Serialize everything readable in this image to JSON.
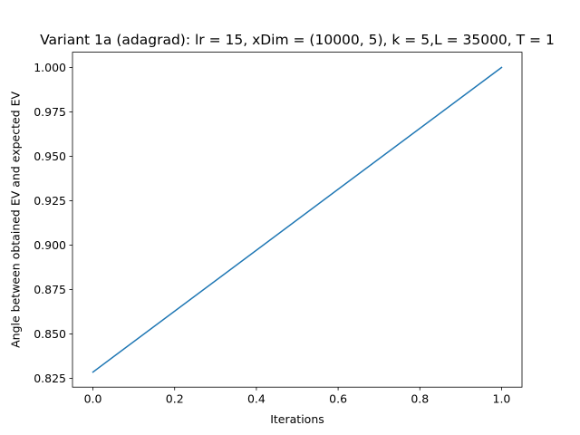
{
  "chart_data": {
    "type": "line",
    "title": "Variant 1a (adagrad): lr = 15, xDim = (10000, 5), k = 5,L = 35000, T = 1",
    "xlabel": "Iterations",
    "ylabel": "Angle between obtained EV and expected EV",
    "xlim": [
      -0.05,
      1.05
    ],
    "ylim": [
      0.82,
      1.0086
    ],
    "x_ticks": [
      0.0,
      0.2,
      0.4,
      0.6,
      0.8,
      1.0
    ],
    "x_tick_labels": [
      "0.0",
      "0.2",
      "0.4",
      "0.6",
      "0.8",
      "1.0"
    ],
    "y_ticks": [
      0.825,
      0.85,
      0.875,
      0.9,
      0.925,
      0.95,
      0.975,
      1.0
    ],
    "y_tick_labels": [
      "0.825",
      "0.850",
      "0.875",
      "0.900",
      "0.925",
      "0.950",
      "0.975",
      "1.000"
    ],
    "grid": false,
    "series": [
      {
        "color": "#1f77b4",
        "x": [
          0,
          1
        ],
        "y": [
          0.8285,
          1.0
        ]
      }
    ]
  }
}
